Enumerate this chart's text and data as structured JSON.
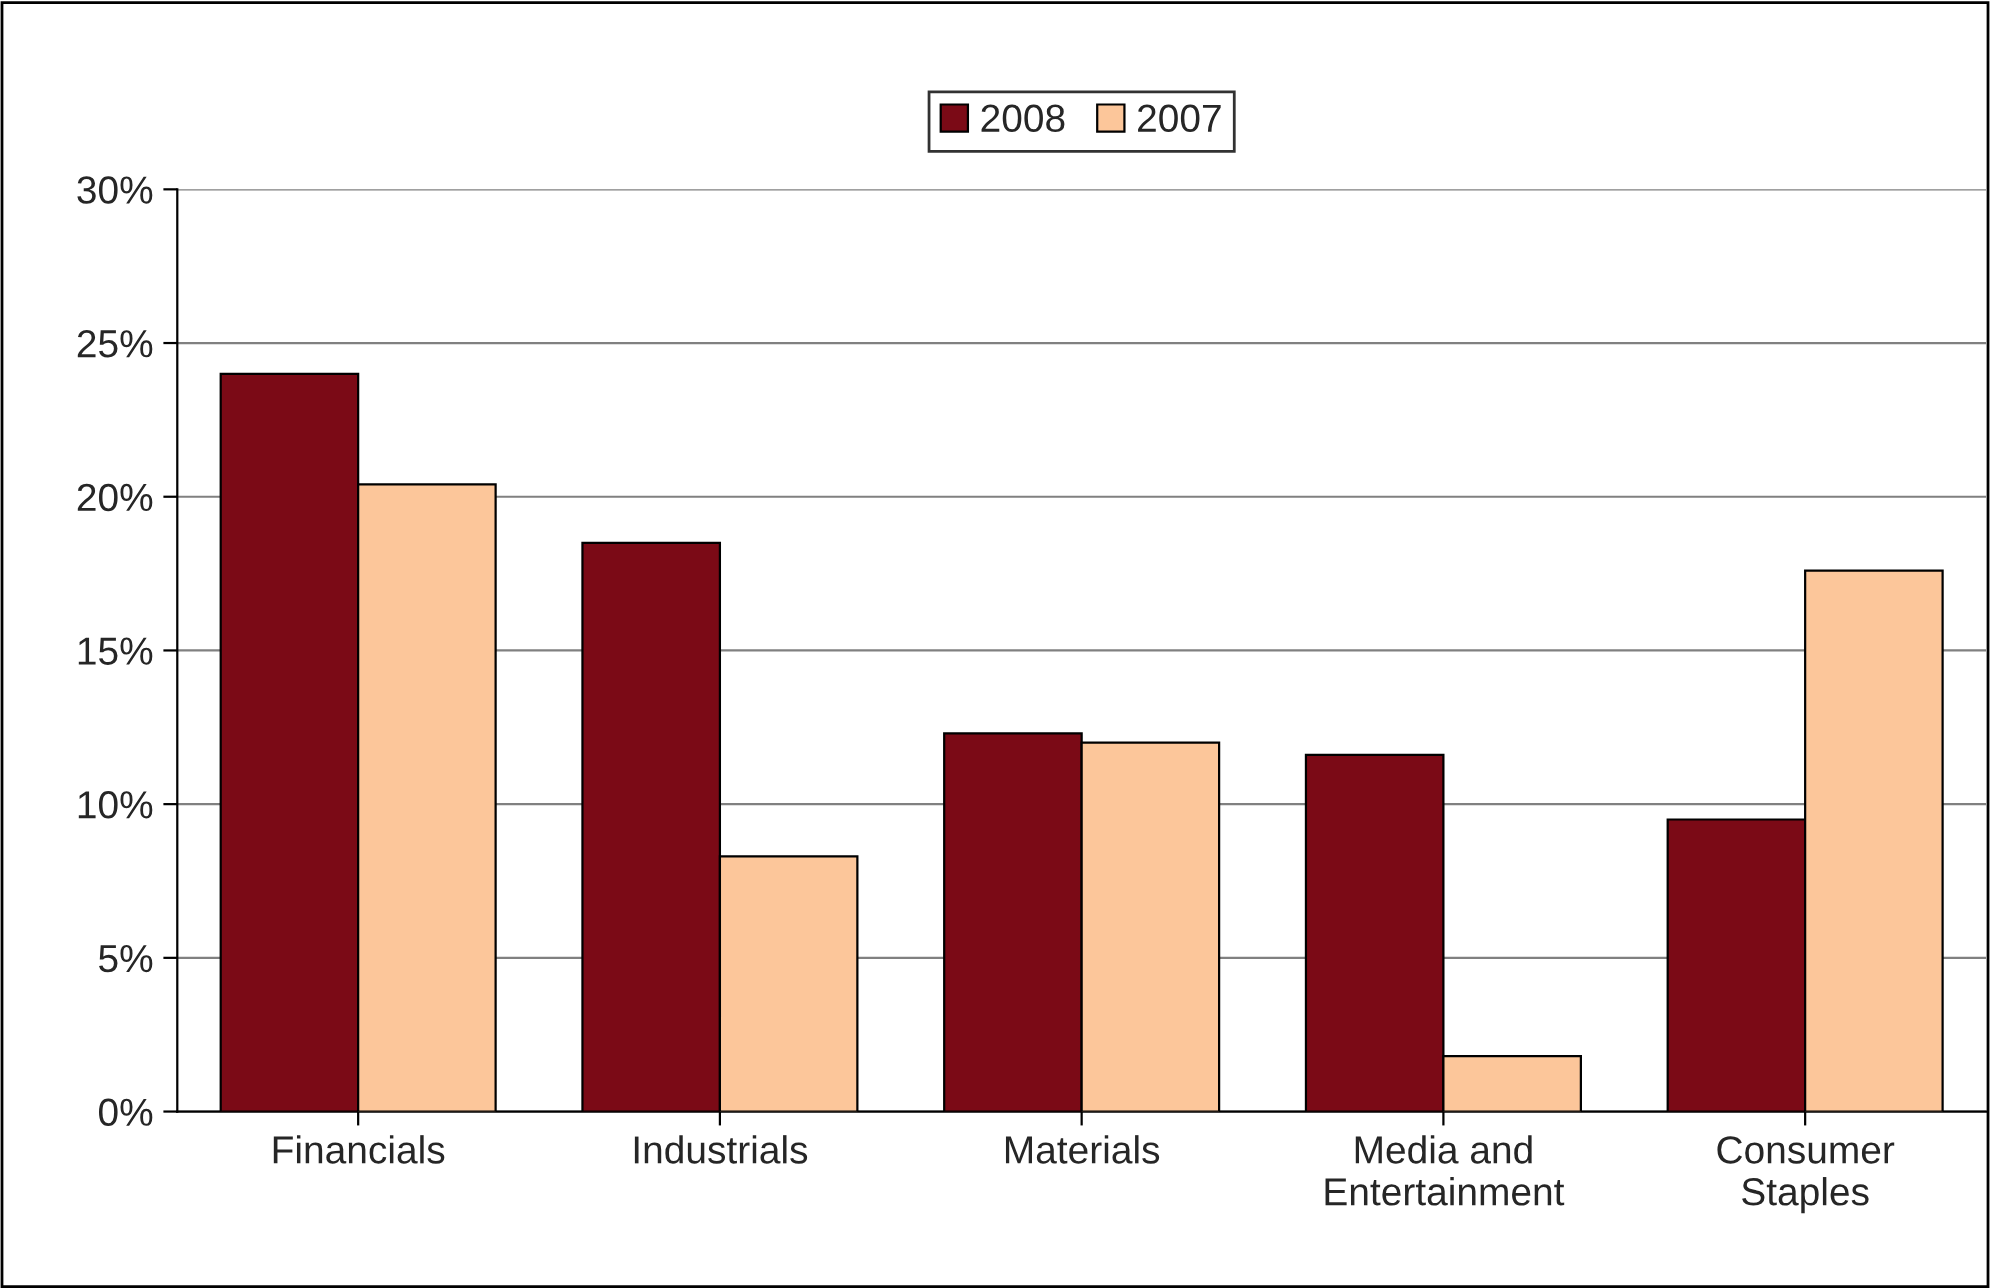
{
  "chart_data": {
    "type": "bar",
    "categories": [
      "Financials",
      "Industrials",
      "Materials",
      "Media and\nEntertainment",
      "Consumer\nStaples"
    ],
    "series": [
      {
        "name": "2008",
        "color": "#7b0a16",
        "values": [
          24.0,
          18.5,
          12.3,
          11.6,
          9.5
        ]
      },
      {
        "name": "2007",
        "color": "#fcc69a",
        "values": [
          20.4,
          8.3,
          12.0,
          1.8,
          17.6
        ]
      }
    ],
    "ylim": [
      0,
      30
    ],
    "yticks": [
      {
        "value": 0,
        "label": "0%"
      },
      {
        "value": 5,
        "label": "5%"
      },
      {
        "value": 10,
        "label": "10%"
      },
      {
        "value": 15,
        "label": "15%"
      },
      {
        "value": 20,
        "label": "20%"
      },
      {
        "value": 25,
        "label": "25%"
      },
      {
        "value": 30,
        "label": "30%"
      }
    ],
    "grid": "y",
    "legend": "top"
  }
}
